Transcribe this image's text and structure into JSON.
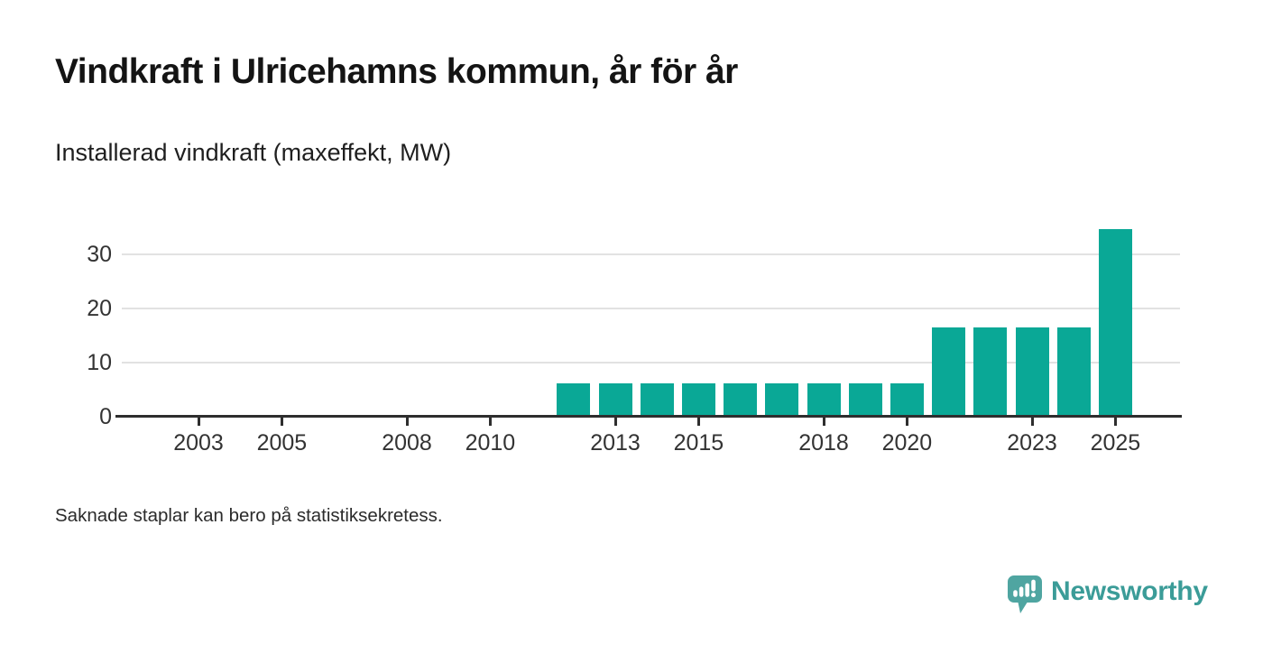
{
  "header": {
    "title": "Vindkraft i Ulricehamns kommun, år för år",
    "subtitle": "Installerad vindkraft (maxeffekt, MW)"
  },
  "chart_data": {
    "type": "bar",
    "title": "Vindkraft i Ulricehamns kommun, år för år",
    "subtitle": "Installerad vindkraft (maxeffekt, MW)",
    "ylabel": "Installerad vindkraft (maxeffekt, MW)",
    "xlabel": "",
    "unit": "MW",
    "categories": [
      2001,
      2002,
      2003,
      2004,
      2005,
      2006,
      2007,
      2008,
      2009,
      2010,
      2011,
      2012,
      2013,
      2014,
      2015,
      2016,
      2017,
      2018,
      2019,
      2020,
      2021,
      2022,
      2023,
      2024,
      2025
    ],
    "values": [
      null,
      null,
      null,
      null,
      null,
      null,
      null,
      null,
      null,
      null,
      null,
      6.1,
      6.1,
      6.1,
      6.1,
      6.1,
      6.1,
      6.1,
      6.1,
      6.1,
      16.5,
      16.5,
      16.5,
      16.5,
      34.7
    ],
    "x_tick_years": [
      2003,
      2005,
      2008,
      2010,
      2013,
      2015,
      2018,
      2020,
      2023,
      2025
    ],
    "y_ticks": [
      0,
      10,
      20,
      30
    ],
    "ylim": [
      0,
      35
    ],
    "xlim": [
      2001,
      2026.5
    ],
    "grid": "horizontal",
    "legend": "none",
    "missing_data_note": "Saknade staplar kan bero på statistiksekretess.",
    "bar_color": "#0aa896",
    "axis_line_color": "#2e2e2e",
    "gridline_color": "#e2e2e2",
    "tick_label_color": "#333333"
  },
  "footer": {
    "note": "Saknade staplar kan bero på statistiksekretess."
  },
  "logo": {
    "brand": "Newsworthy",
    "icon": "newsworthy-bar-chart-speech-bubble-icon",
    "icon_color": "#4fa5a1",
    "icon_mark_color": "#ffffff",
    "text_color": "#3b9c98"
  }
}
